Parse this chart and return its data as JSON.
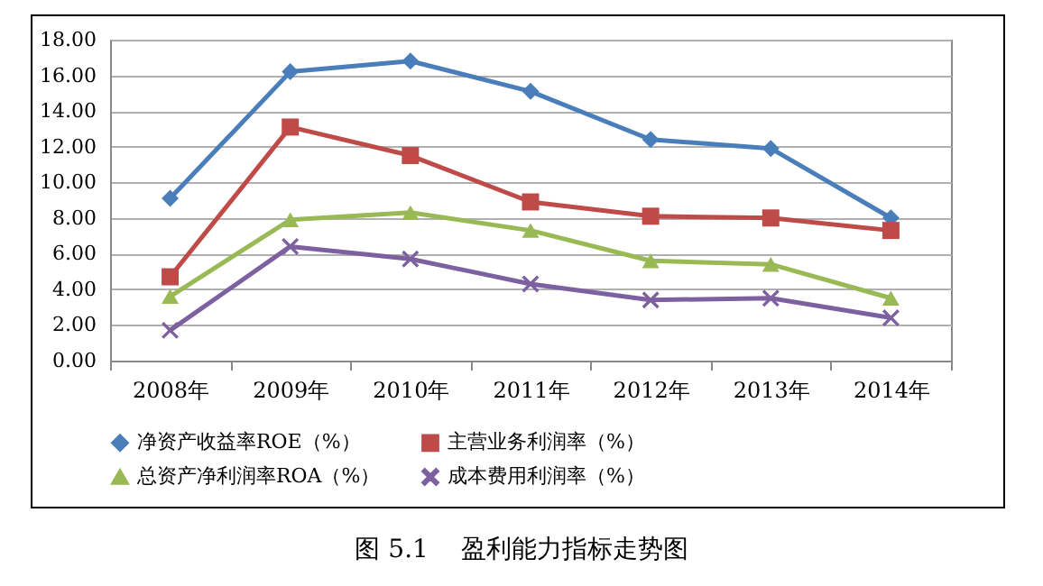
{
  "chart_data": {
    "type": "line",
    "categories": [
      "2008年",
      "2009年",
      "2010年",
      "2011年",
      "2012年",
      "2013年",
      "2014年"
    ],
    "series": [
      {
        "name": "净资产收益率ROE（%）",
        "color": "#4a7ebb",
        "marker": "diamond",
        "values": [
          9.1,
          16.2,
          16.8,
          15.1,
          12.4,
          11.9,
          8.0
        ]
      },
      {
        "name": "主营业务利润率（%）",
        "color": "#be4b48",
        "marker": "square",
        "values": [
          4.7,
          13.1,
          11.5,
          8.9,
          8.1,
          8.0,
          7.3
        ]
      },
      {
        "name": "总资产净利润率ROA（%）",
        "color": "#98b954",
        "marker": "triangle",
        "values": [
          3.6,
          7.9,
          8.3,
          7.3,
          5.6,
          5.4,
          3.5
        ]
      },
      {
        "name": "成本费用利润率（%）",
        "color": "#7d60a0",
        "marker": "cross",
        "values": [
          1.7,
          6.4,
          5.7,
          4.3,
          3.4,
          3.5,
          2.4
        ]
      }
    ],
    "ylim": [
      0,
      18
    ],
    "yticks": [
      {
        "value": 0,
        "label": "0.00"
      },
      {
        "value": 2,
        "label": "2.00"
      },
      {
        "value": 4,
        "label": "4.00"
      },
      {
        "value": 6,
        "label": "6.00"
      },
      {
        "value": 8,
        "label": "8.00"
      },
      {
        "value": 10,
        "label": "10.00"
      },
      {
        "value": 12,
        "label": "12.00"
      },
      {
        "value": 14,
        "label": "14.00"
      },
      {
        "value": 16,
        "label": "16.00"
      },
      {
        "value": 18,
        "label": "18.00"
      }
    ],
    "grid": "y",
    "legend": "bottom",
    "line_style": "solid",
    "annotations": [
      "图 5.1    盈利能力指标走势图"
    ]
  }
}
